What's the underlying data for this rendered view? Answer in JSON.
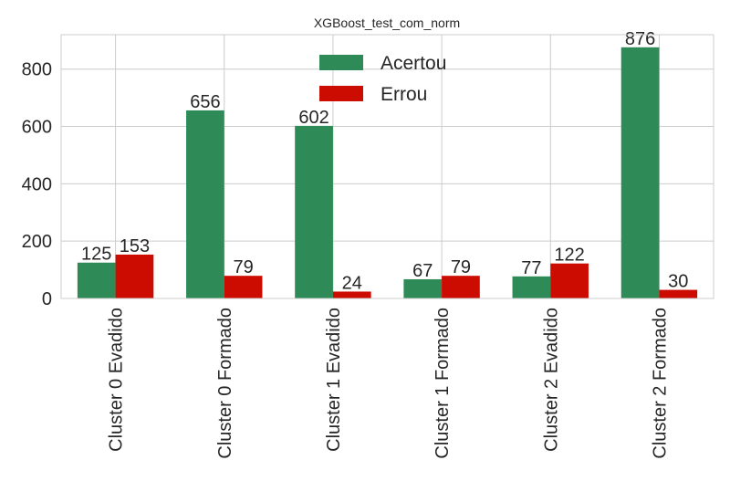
{
  "chart_data": {
    "type": "bar",
    "title": "XGBoost_test_com_norm",
    "xlabel": "",
    "ylabel": "",
    "categories": [
      "Cluster 0 Evadido",
      "Cluster 0 Formado",
      "Cluster 1 Evadido",
      "Cluster 1 Formado",
      "Cluster 2 Evadido",
      "Cluster 2 Formado"
    ],
    "series": [
      {
        "name": "Acertou",
        "color": "#2e8b57",
        "values": [
          125,
          656,
          602,
          67,
          77,
          876
        ]
      },
      {
        "name": "Errou",
        "color": "#cc0c00",
        "values": [
          153,
          79,
          24,
          79,
          122,
          30
        ]
      }
    ],
    "ylim": [
      0,
      920
    ],
    "yticks": [
      "0",
      "200",
      "400",
      "600",
      "800"
    ],
    "grid": true,
    "legend_position": "top-center"
  }
}
